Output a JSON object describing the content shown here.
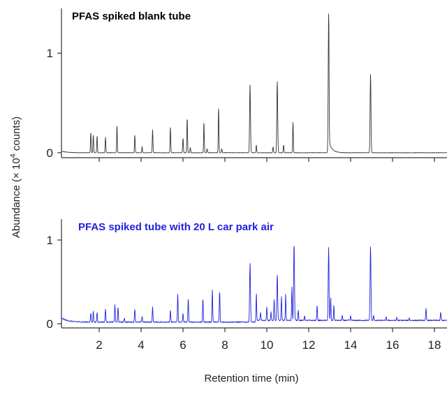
{
  "chart_data": {
    "type": "line",
    "xlabel": "Retention time (min)",
    "ylabel": {
      "prefix": "Abundance (× 10",
      "superscript": "4",
      "suffix": " counts)"
    },
    "xlim": [
      0.2,
      18.6
    ],
    "x_ticks": [
      2,
      4,
      6,
      8,
      10,
      12,
      14,
      16,
      18
    ],
    "panels": [
      {
        "title": "PFAS spiked blank tube",
        "color": "#333333",
        "ylim": [
          -0.05,
          1.45
        ],
        "y_ticks": [
          0,
          1
        ],
        "baseline": 0.0,
        "peaks": [
          {
            "x": 1.6,
            "y": 0.21
          },
          {
            "x": 1.72,
            "y": 0.18
          },
          {
            "x": 1.9,
            "y": 0.17
          },
          {
            "x": 2.3,
            "y": 0.16
          },
          {
            "x": 2.85,
            "y": 0.28
          },
          {
            "x": 3.7,
            "y": 0.18
          },
          {
            "x": 4.05,
            "y": 0.06
          },
          {
            "x": 4.55,
            "y": 0.23
          },
          {
            "x": 5.4,
            "y": 0.26
          },
          {
            "x": 6.0,
            "y": 0.15
          },
          {
            "x": 6.2,
            "y": 0.36
          },
          {
            "x": 6.35,
            "y": 0.05
          },
          {
            "x": 7.0,
            "y": 0.31
          },
          {
            "x": 7.15,
            "y": 0.04
          },
          {
            "x": 7.7,
            "y": 0.46
          },
          {
            "x": 7.85,
            "y": 0.04
          },
          {
            "x": 9.2,
            "y": 0.69
          },
          {
            "x": 9.5,
            "y": 0.08
          },
          {
            "x": 10.3,
            "y": 0.06
          },
          {
            "x": 10.5,
            "y": 0.73
          },
          {
            "x": 10.8,
            "y": 0.08
          },
          {
            "x": 11.25,
            "y": 0.31
          },
          {
            "x": 12.95,
            "y": 1.4
          },
          {
            "x": 14.95,
            "y": 0.8
          }
        ]
      },
      {
        "title": "PFAS spiked tube with 20 L car park air",
        "color": "#2222dd",
        "ylim": [
          -0.05,
          1.25
        ],
        "y_ticks": [
          0,
          1
        ],
        "baseline": 0.02,
        "peaks": [
          {
            "x": 1.6,
            "y": 0.13
          },
          {
            "x": 1.72,
            "y": 0.15
          },
          {
            "x": 1.9,
            "y": 0.14
          },
          {
            "x": 2.3,
            "y": 0.18
          },
          {
            "x": 2.75,
            "y": 0.23
          },
          {
            "x": 2.9,
            "y": 0.2
          },
          {
            "x": 3.2,
            "y": 0.07
          },
          {
            "x": 3.7,
            "y": 0.18
          },
          {
            "x": 4.05,
            "y": 0.09
          },
          {
            "x": 4.55,
            "y": 0.2
          },
          {
            "x": 5.4,
            "y": 0.16
          },
          {
            "x": 5.75,
            "y": 0.36
          },
          {
            "x": 6.0,
            "y": 0.12
          },
          {
            "x": 6.25,
            "y": 0.3
          },
          {
            "x": 6.95,
            "y": 0.3
          },
          {
            "x": 7.4,
            "y": 0.41
          },
          {
            "x": 7.75,
            "y": 0.4
          },
          {
            "x": 9.2,
            "y": 0.73
          },
          {
            "x": 9.5,
            "y": 0.35
          },
          {
            "x": 9.7,
            "y": 0.12
          },
          {
            "x": 10.0,
            "y": 0.18
          },
          {
            "x": 10.2,
            "y": 0.12
          },
          {
            "x": 10.35,
            "y": 0.27
          },
          {
            "x": 10.5,
            "y": 0.57
          },
          {
            "x": 10.7,
            "y": 0.3
          },
          {
            "x": 10.9,
            "y": 0.33
          },
          {
            "x": 11.2,
            "y": 0.42
          },
          {
            "x": 11.3,
            "y": 0.95
          },
          {
            "x": 11.5,
            "y": 0.15
          },
          {
            "x": 11.8,
            "y": 0.08
          },
          {
            "x": 12.4,
            "y": 0.2
          },
          {
            "x": 12.95,
            "y": 0.89
          },
          {
            "x": 13.05,
            "y": 0.29
          },
          {
            "x": 13.2,
            "y": 0.2
          },
          {
            "x": 13.6,
            "y": 0.08
          },
          {
            "x": 14.0,
            "y": 0.07
          },
          {
            "x": 14.95,
            "y": 0.91
          },
          {
            "x": 15.1,
            "y": 0.08
          },
          {
            "x": 15.7,
            "y": 0.06
          },
          {
            "x": 16.2,
            "y": 0.06
          },
          {
            "x": 16.8,
            "y": 0.05
          },
          {
            "x": 17.6,
            "y": 0.16
          },
          {
            "x": 18.3,
            "y": 0.12
          }
        ]
      }
    ]
  }
}
